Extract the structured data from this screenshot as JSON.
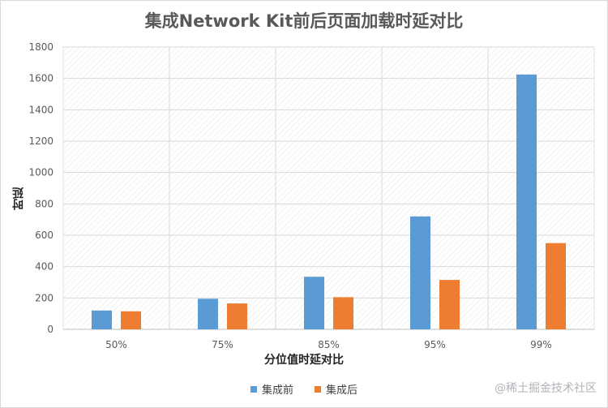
{
  "chart_data": {
    "type": "bar",
    "title": "集成Network Kit前后页面加载时延对比",
    "xlabel": "分位值时延对比",
    "ylabel": "时延",
    "categories": [
      "50%",
      "75%",
      "85%",
      "95%",
      "99%"
    ],
    "series": [
      {
        "name": "集成前",
        "values": [
          120,
          195,
          335,
          720,
          1625
        ],
        "color": "#5b9bd5"
      },
      {
        "name": "集成后",
        "values": [
          115,
          165,
          205,
          315,
          550
        ],
        "color": "#ed7d31"
      }
    ],
    "ylim": [
      0,
      1800
    ],
    "yticks": [
      0,
      200,
      400,
      600,
      800,
      1000,
      1200,
      1400,
      1600,
      1800
    ],
    "grid": true,
    "legend_position": "bottom"
  },
  "watermark": "@稀土掘金技术社区"
}
